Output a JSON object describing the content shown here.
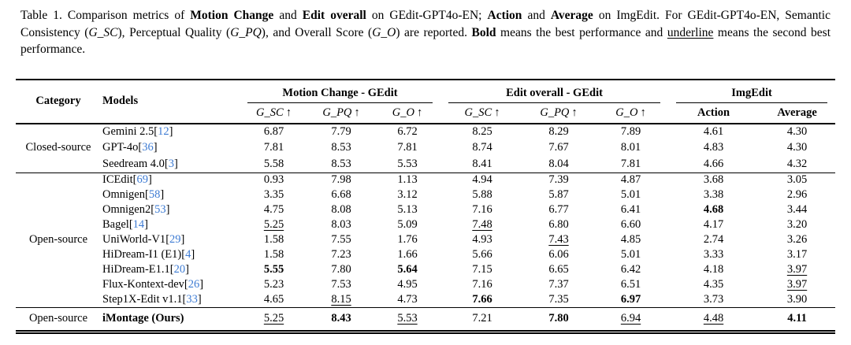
{
  "caption": {
    "segments": [
      {
        "t": "Table 1.  Comparison metrics of ",
        "s": "n"
      },
      {
        "t": "Motion Change",
        "s": "b"
      },
      {
        "t": " and ",
        "s": "n"
      },
      {
        "t": "Edit overall",
        "s": "b"
      },
      {
        "t": " on GEdit-GPT4o-EN; ",
        "s": "n"
      },
      {
        "t": "Action",
        "s": "b"
      },
      {
        "t": " and ",
        "s": "n"
      },
      {
        "t": "Average",
        "s": "b"
      },
      {
        "t": " on ImgEdit.  For GEdit-GPT4o-EN, Semantic Consistency (",
        "s": "n"
      },
      {
        "t": "G_SC",
        "s": "i"
      },
      {
        "t": "), Perceptual Quality (",
        "s": "n"
      },
      {
        "t": "G_PQ",
        "s": "i"
      },
      {
        "t": "), and Overall Score (",
        "s": "n"
      },
      {
        "t": "G_O",
        "s": "i"
      },
      {
        "t": ") are reported.  ",
        "s": "n"
      },
      {
        "t": "Bold",
        "s": "b"
      },
      {
        "t": " means the best performance and ",
        "s": "n"
      },
      {
        "t": "underline",
        "s": "u"
      },
      {
        "t": " means the second best performance.",
        "s": "n"
      }
    ]
  },
  "table": {
    "header": {
      "category_label": "Category",
      "models_label": "Models",
      "arrow_up": "↑",
      "groups": [
        {
          "label": "Motion Change - GEdit",
          "subs": [
            "G_SC",
            "G_PQ",
            "G_O"
          ]
        },
        {
          "label": "Edit overall - GEdit",
          "subs": [
            "G_SC",
            "G_PQ",
            "G_O"
          ]
        },
        {
          "label": "ImgEdit",
          "subs": [
            "Action",
            "Average"
          ]
        }
      ]
    },
    "sections": [
      {
        "category": "Closed-source",
        "rows": [
          {
            "model": "Gemini 2.5",
            "cite": "12",
            "cells": [
              {
                "v": "6.87"
              },
              {
                "v": "7.79"
              },
              {
                "v": "6.72"
              },
              {
                "v": "8.25"
              },
              {
                "v": "8.29"
              },
              {
                "v": "7.89"
              },
              {
                "v": "4.61"
              },
              {
                "v": "4.30"
              }
            ]
          },
          {
            "model": "GPT-4o",
            "cite": "36",
            "cells": [
              {
                "v": "7.81"
              },
              {
                "v": "8.53"
              },
              {
                "v": "7.81"
              },
              {
                "v": "8.74"
              },
              {
                "v": "7.67"
              },
              {
                "v": "8.01"
              },
              {
                "v": "4.83"
              },
              {
                "v": "4.30"
              }
            ]
          },
          {
            "model": "Seedream 4.0",
            "cite": "3",
            "cells": [
              {
                "v": "5.58"
              },
              {
                "v": "8.53"
              },
              {
                "v": "5.53"
              },
              {
                "v": "8.41"
              },
              {
                "v": "8.04"
              },
              {
                "v": "7.81"
              },
              {
                "v": "4.66"
              },
              {
                "v": "4.32"
              }
            ]
          }
        ]
      },
      {
        "category": "Open-source",
        "rows": [
          {
            "model": "ICEdit",
            "cite": "69",
            "cells": [
              {
                "v": "0.93"
              },
              {
                "v": "7.98"
              },
              {
                "v": "1.13"
              },
              {
                "v": "4.94"
              },
              {
                "v": "7.39"
              },
              {
                "v": "4.87"
              },
              {
                "v": "3.68"
              },
              {
                "v": "3.05"
              }
            ]
          },
          {
            "model": "Omnigen",
            "cite": "58",
            "cells": [
              {
                "v": "3.35"
              },
              {
                "v": "6.68"
              },
              {
                "v": "3.12"
              },
              {
                "v": "5.88"
              },
              {
                "v": "5.87"
              },
              {
                "v": "5.01"
              },
              {
                "v": "3.38"
              },
              {
                "v": "2.96"
              }
            ]
          },
          {
            "model": "Omnigen2",
            "cite": "53",
            "cells": [
              {
                "v": "4.75"
              },
              {
                "v": "8.08"
              },
              {
                "v": "5.13"
              },
              {
                "v": "7.16"
              },
              {
                "v": "6.77"
              },
              {
                "v": "6.41"
              },
              {
                "v": "4.68",
                "s": "b"
              },
              {
                "v": "3.44"
              }
            ]
          },
          {
            "model": "Bagel",
            "cite": "14",
            "cells": [
              {
                "v": "5.25",
                "s": "u"
              },
              {
                "v": "8.03"
              },
              {
                "v": "5.09"
              },
              {
                "v": "7.48",
                "s": "u"
              },
              {
                "v": "6.80"
              },
              {
                "v": "6.60"
              },
              {
                "v": "4.17"
              },
              {
                "v": "3.20"
              }
            ]
          },
          {
            "model": "UniWorld-V1",
            "cite": "29",
            "cells": [
              {
                "v": "1.58"
              },
              {
                "v": "7.55"
              },
              {
                "v": "1.76"
              },
              {
                "v": "4.93"
              },
              {
                "v": "7.43",
                "s": "u"
              },
              {
                "v": "4.85"
              },
              {
                "v": "2.74"
              },
              {
                "v": "3.26"
              }
            ]
          },
          {
            "model": "HiDream-I1 (E1)",
            "cite": "4",
            "cells": [
              {
                "v": "1.58"
              },
              {
                "v": "7.23"
              },
              {
                "v": "1.66"
              },
              {
                "v": "5.66"
              },
              {
                "v": "6.06"
              },
              {
                "v": "5.01"
              },
              {
                "v": "3.33"
              },
              {
                "v": "3.17"
              }
            ]
          },
          {
            "model": "HiDream-E1.1",
            "cite": "20",
            "cells": [
              {
                "v": "5.55",
                "s": "b"
              },
              {
                "v": "7.80"
              },
              {
                "v": "5.64",
                "s": "b"
              },
              {
                "v": "7.15"
              },
              {
                "v": "6.65"
              },
              {
                "v": "6.42"
              },
              {
                "v": "4.18"
              },
              {
                "v": "3.97",
                "s": "u"
              }
            ]
          },
          {
            "model": "Flux-Kontext-dev",
            "cite": "26",
            "cells": [
              {
                "v": "5.23"
              },
              {
                "v": "7.53"
              },
              {
                "v": "4.95"
              },
              {
                "v": "7.16"
              },
              {
                "v": "7.37"
              },
              {
                "v": "6.51"
              },
              {
                "v": "4.35"
              },
              {
                "v": "3.97",
                "s": "u"
              }
            ]
          },
          {
            "model": "Step1X-Edit v1.1",
            "cite": "33",
            "cells": [
              {
                "v": "4.65"
              },
              {
                "v": "8.15",
                "s": "u"
              },
              {
                "v": "4.73"
              },
              {
                "v": "7.66",
                "s": "b"
              },
              {
                "v": "7.35"
              },
              {
                "v": "6.97",
                "s": "b"
              },
              {
                "v": "3.73"
              },
              {
                "v": "3.90"
              }
            ]
          }
        ]
      },
      {
        "category": "Open-source",
        "rows": [
          {
            "model": "iMontage (Ours)",
            "bold": true,
            "cells": [
              {
                "v": "5.25",
                "s": "u"
              },
              {
                "v": "8.43",
                "s": "b"
              },
              {
                "v": "5.53",
                "s": "u"
              },
              {
                "v": "7.21"
              },
              {
                "v": "7.80",
                "s": "b"
              },
              {
                "v": "6.94",
                "s": "u"
              },
              {
                "v": "4.48",
                "s": "u"
              },
              {
                "v": "4.11",
                "s": "b"
              }
            ]
          }
        ]
      }
    ]
  },
  "colors": {
    "citation_link": "#3d7bd3",
    "text": "#000000",
    "background": "#ffffff"
  }
}
